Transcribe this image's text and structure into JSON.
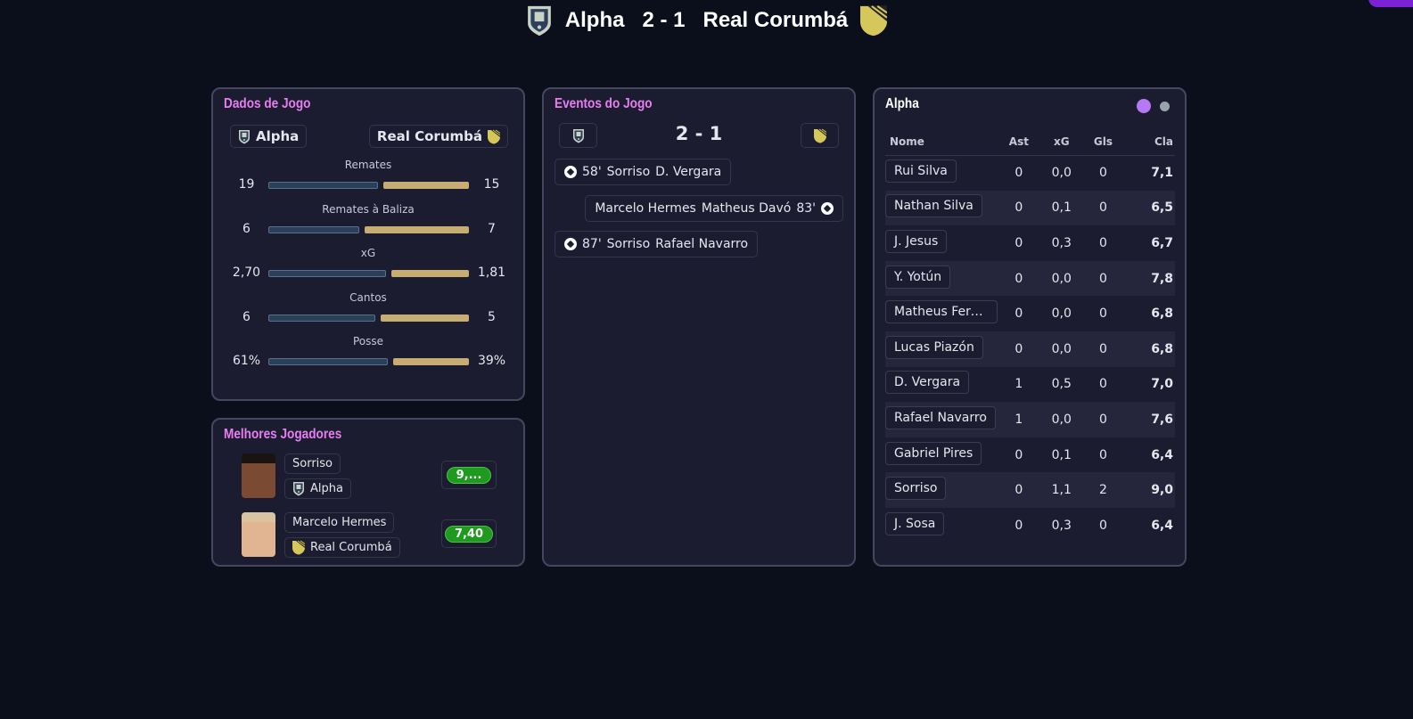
{
  "header": {
    "home": "Alpha",
    "score": "2 - 1",
    "away": "Real Corumbá"
  },
  "colors": {
    "accent_title": "#e77ef0",
    "home_bar": "#2b4058",
    "away_bar": "#c8ad72",
    "rating_green": "#1e9a1e",
    "purple_dot": "#b678f5"
  },
  "stats": {
    "title": "Dados de Jogo",
    "home": "Alpha",
    "away": "Real Corumbá",
    "items": [
      {
        "label": "Remates",
        "home": "19",
        "away": "15",
        "hv": 19,
        "av": 15
      },
      {
        "label": "Remates à Baliza",
        "home": "6",
        "away": "7",
        "hv": 6,
        "av": 7
      },
      {
        "label": "xG",
        "home": "2,70",
        "away": "1,81",
        "hv": 2.7,
        "av": 1.81
      },
      {
        "label": "Cantos",
        "home": "6",
        "away": "5",
        "hv": 6,
        "av": 5
      },
      {
        "label": "Posse",
        "home": "61%",
        "away": "39%",
        "hv": 61,
        "av": 39
      }
    ]
  },
  "best": {
    "title": "Melhores Jogadores",
    "players": [
      {
        "name": "Sorriso",
        "team": "Alpha",
        "rating": "9,..."
      },
      {
        "name": "Marcelo Hermes",
        "team": "Real Corumbá",
        "rating": "7,40"
      }
    ]
  },
  "events": {
    "title": "Eventos do Jogo",
    "score": "2 - 1",
    "items": [
      {
        "minute": "58'",
        "scorer": "Sorriso",
        "assist": "D. Vergara",
        "side": "home",
        "icon": "soccer-ball-icon"
      },
      {
        "minute": "83'",
        "scorer": "Matheus Davó",
        "assist": "Marcelo Hermes",
        "side": "away",
        "icon": "soccer-ball-icon"
      },
      {
        "minute": "87'",
        "scorer": "Sorriso",
        "assist": "Rafael Navarro",
        "side": "home",
        "icon": "soccer-ball-icon"
      }
    ]
  },
  "lineup": {
    "title": "Alpha",
    "columns": [
      "Nome",
      "Ast",
      "xG",
      "Gls",
      "Cla"
    ],
    "rows": [
      [
        "Rui Silva",
        "0",
        "0,0",
        "0",
        "7,1"
      ],
      [
        "Nathan Silva",
        "0",
        "0,1",
        "0",
        "6,5"
      ],
      [
        "J. Jesus",
        "0",
        "0,3",
        "0",
        "6,7"
      ],
      [
        "Y. Yotún",
        "0",
        "0,0",
        "0",
        "7,8"
      ],
      [
        "Matheus Fern...",
        "0",
        "0,0",
        "0",
        "6,8"
      ],
      [
        "Lucas Piazón",
        "0",
        "0,0",
        "0",
        "6,8"
      ],
      [
        "D. Vergara",
        "1",
        "0,5",
        "0",
        "7,0"
      ],
      [
        "Rafael Navarro",
        "1",
        "0,0",
        "0",
        "7,6"
      ],
      [
        "Gabriel Pires",
        "0",
        "0,1",
        "0",
        "6,4"
      ],
      [
        "Sorriso",
        "0",
        "1,1",
        "2",
        "9,0"
      ],
      [
        "J. Sosa",
        "0",
        "0,3",
        "0",
        "6,4"
      ]
    ]
  }
}
